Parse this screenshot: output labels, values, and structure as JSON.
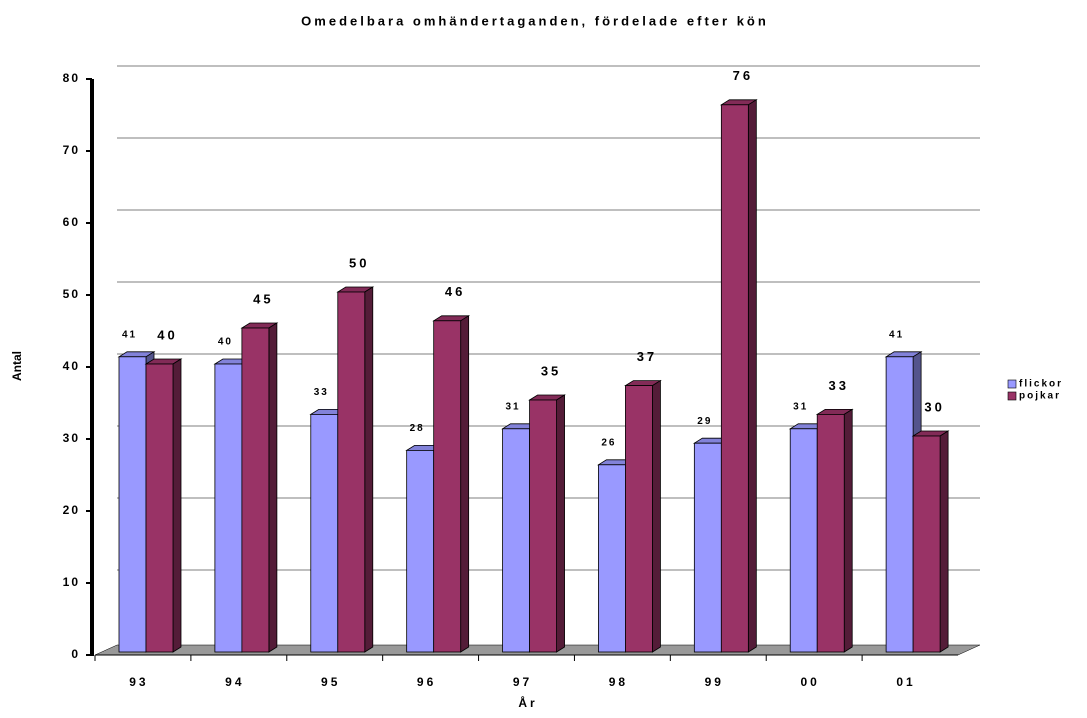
{
  "chart_data": {
    "type": "bar3d",
    "title": "Omedelbara omhändertaganden, fördelade efter kön",
    "x_label": "År",
    "y_label": "Antal",
    "categories": [
      "93",
      "94",
      "95",
      "96",
      "97",
      "98",
      "99",
      "00",
      "01"
    ],
    "series": [
      {
        "name": "flickor",
        "color": "#9999ff",
        "values": [
          41,
          40,
          33,
          28,
          31,
          26,
          29,
          31,
          41
        ]
      },
      {
        "name": "pojkar",
        "color": "#993366",
        "values": [
          40,
          45,
          50,
          46,
          35,
          37,
          76,
          33,
          30
        ]
      }
    ],
    "ylim": [
      0,
      80
    ],
    "yticks": [
      0,
      10,
      20,
      30,
      40,
      50,
      60,
      70,
      80
    ],
    "grid": true,
    "legend": "right"
  }
}
